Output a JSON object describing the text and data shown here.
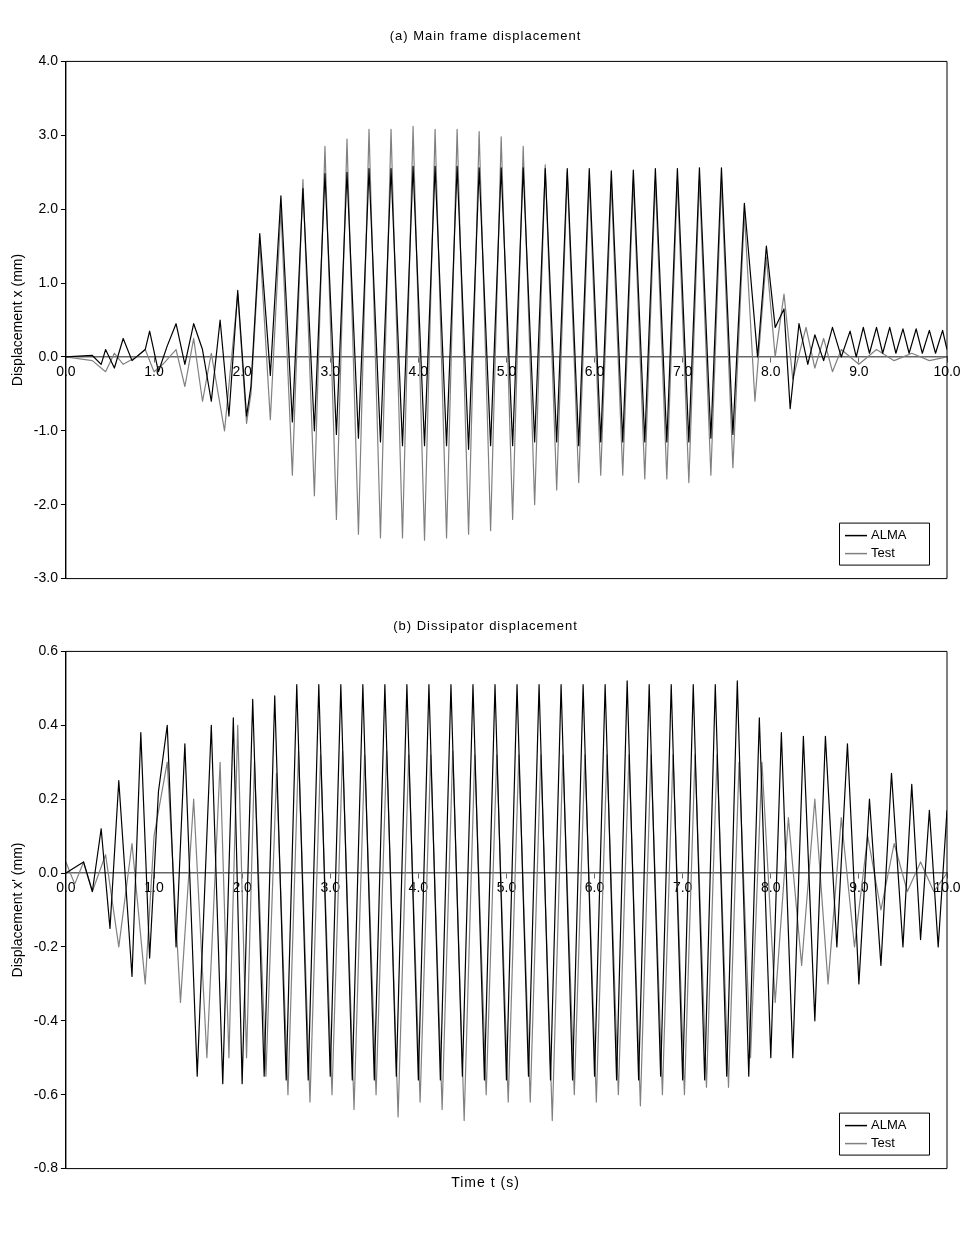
{
  "chart_data": [
    {
      "type": "line",
      "title": "(a) Main frame displacement",
      "ylabel": "Displacement x (mm)",
      "xlim": [
        0,
        10
      ],
      "xticks": [
        {
          "value": 0,
          "label": "0.0"
        },
        {
          "value": 1,
          "label": "1.0"
        },
        {
          "value": 2,
          "label": "2.0"
        },
        {
          "value": 3,
          "label": "3.0"
        },
        {
          "value": 4,
          "label": "4.0"
        },
        {
          "value": 5,
          "label": "5.0"
        },
        {
          "value": 6,
          "label": "6.0"
        },
        {
          "value": 7,
          "label": "7.0"
        },
        {
          "value": 8,
          "label": "8.0"
        },
        {
          "value": 9,
          "label": "9.0"
        },
        {
          "value": 10,
          "label": "10.0"
        }
      ],
      "ylim": [
        -3,
        4
      ],
      "yticks": [
        {
          "value": -3,
          "label": "-3.0"
        },
        {
          "value": -2,
          "label": "-2.0"
        },
        {
          "value": -1,
          "label": "-1.0"
        },
        {
          "value": 0,
          "label": "0.0"
        },
        {
          "value": 1,
          "label": "1.0"
        },
        {
          "value": 2,
          "label": "2.0"
        },
        {
          "value": 3,
          "label": "3.0"
        },
        {
          "value": 4,
          "label": "4.0"
        }
      ],
      "grid": false,
      "legend": "bottom right",
      "series": [
        {
          "name": "ALMA",
          "color": "#000000",
          "x": [
            0,
            0.3,
            0.4,
            0.45,
            0.55,
            0.65,
            0.75,
            0.9,
            0.95,
            1.05,
            1.15,
            1.25,
            1.35,
            1.45,
            1.55,
            1.65,
            1.75,
            1.85,
            1.95,
            2.05,
            2.1,
            2.2,
            2.32,
            2.44,
            2.57,
            2.69,
            2.82,
            2.94,
            3.07,
            3.19,
            3.32,
            3.44,
            3.57,
            3.69,
            3.82,
            3.94,
            4.07,
            4.19,
            4.32,
            4.44,
            4.57,
            4.69,
            4.82,
            4.94,
            5.07,
            5.19,
            5.32,
            5.44,
            5.57,
            5.69,
            5.82,
            5.94,
            6.07,
            6.19,
            6.32,
            6.44,
            6.57,
            6.69,
            6.82,
            6.94,
            7.07,
            7.19,
            7.32,
            7.44,
            7.57,
            7.7,
            7.85,
            7.95,
            8.05,
            8.15,
            8.22,
            8.32,
            8.42,
            8.5,
            8.6,
            8.7,
            8.8,
            8.9,
            8.97,
            9.05,
            9.12,
            9.2,
            9.27,
            9.35,
            9.42,
            9.5,
            9.57,
            9.65,
            9.72,
            9.8,
            9.87,
            9.95,
            10
          ],
          "values": [
            0,
            0.02,
            -0.1,
            0.1,
            -0.15,
            0.25,
            -0.05,
            0.1,
            0.35,
            -0.2,
            0.15,
            0.45,
            -0.1,
            0.45,
            0.1,
            -0.6,
            0.5,
            -0.8,
            0.9,
            -0.8,
            -0.4,
            1.67,
            -0.25,
            2.18,
            -0.88,
            2.28,
            -1.0,
            2.48,
            -1.05,
            2.5,
            -1.1,
            2.55,
            -1.15,
            2.55,
            -1.2,
            2.58,
            -1.2,
            2.58,
            -1.2,
            2.58,
            -1.25,
            2.56,
            -1.2,
            2.56,
            -1.2,
            2.56,
            -1.15,
            2.55,
            -1.15,
            2.55,
            -1.2,
            2.55,
            -1.15,
            2.52,
            -1.15,
            2.53,
            -1.15,
            2.55,
            -1.15,
            2.55,
            -1.15,
            2.56,
            -1.1,
            2.56,
            -1.05,
            2.08,
            0,
            1.5,
            0.4,
            0.65,
            -0.7,
            0.45,
            -0.1,
            0.3,
            -0.05,
            0.4,
            0,
            0.35,
            0,
            0.4,
            0.05,
            0.4,
            0.05,
            0.4,
            0.05,
            0.38,
            0.05,
            0.38,
            0.05,
            0.36,
            0.05,
            0.36,
            0.1
          ]
        },
        {
          "name": "Test",
          "color": "#808080",
          "x": [
            0,
            0.3,
            0.45,
            0.55,
            0.65,
            0.8,
            0.9,
            1.0,
            1.1,
            1.25,
            1.35,
            1.45,
            1.55,
            1.65,
            1.8,
            1.95,
            2.05,
            2.1,
            2.2,
            2.32,
            2.44,
            2.57,
            2.69,
            2.82,
            2.94,
            3.07,
            3.19,
            3.32,
            3.44,
            3.57,
            3.69,
            3.82,
            3.94,
            4.07,
            4.19,
            4.32,
            4.44,
            4.57,
            4.69,
            4.82,
            4.94,
            5.07,
            5.19,
            5.32,
            5.44,
            5.57,
            5.69,
            5.82,
            5.94,
            6.07,
            6.19,
            6.32,
            6.44,
            6.57,
            6.69,
            6.82,
            6.94,
            7.07,
            7.19,
            7.32,
            7.44,
            7.57,
            7.7,
            7.82,
            7.95,
            8.05,
            8.15,
            8.25,
            8.4,
            8.5,
            8.6,
            8.7,
            8.8,
            9.0,
            9.2,
            9.4,
            9.6,
            9.8,
            10
          ],
          "values": [
            0,
            -0.05,
            -0.2,
            0.05,
            -0.1,
            0,
            0.1,
            -0.2,
            -0.1,
            0.1,
            -0.4,
            0.25,
            -0.6,
            0.05,
            -1.0,
            0.85,
            -0.9,
            -0.5,
            1.55,
            -0.85,
            2.0,
            -1.6,
            2.4,
            -1.88,
            2.85,
            -2.2,
            2.95,
            -2.4,
            3.08,
            -2.45,
            3.08,
            -2.45,
            3.12,
            -2.48,
            3.08,
            -2.45,
            3.08,
            -2.4,
            3.05,
            -2.35,
            2.98,
            -2.2,
            2.85,
            -2.0,
            2.6,
            -1.8,
            2.5,
            -1.7,
            2.4,
            -1.6,
            2.35,
            -1.6,
            2.4,
            -1.65,
            2.4,
            -1.65,
            2.4,
            -1.7,
            2.4,
            -1.6,
            2.38,
            -1.5,
            1.95,
            -0.6,
            1.35,
            0,
            0.85,
            -0.3,
            0.4,
            -0.15,
            0.25,
            -0.2,
            0.1,
            -0.1,
            0.1,
            -0.05,
            0.05,
            -0.05,
            0
          ]
        }
      ]
    },
    {
      "type": "line",
      "title": "(b) Dissipator displacement",
      "xlabel": "Time t (s)",
      "ylabel": "Displacement x' (mm)",
      "xlim": [
        0,
        10
      ],
      "xticks": [
        {
          "value": 0,
          "label": "0.0"
        },
        {
          "value": 1,
          "label": "1.0"
        },
        {
          "value": 2,
          "label": "2.0"
        },
        {
          "value": 3,
          "label": "3.0"
        },
        {
          "value": 4,
          "label": "4.0"
        },
        {
          "value": 5,
          "label": "5.0"
        },
        {
          "value": 6,
          "label": "6.0"
        },
        {
          "value": 7,
          "label": "7.0"
        },
        {
          "value": 8,
          "label": "8.0"
        },
        {
          "value": 9,
          "label": "9.0"
        },
        {
          "value": 10,
          "label": "10.0"
        }
      ],
      "ylim": [
        -0.8,
        0.6
      ],
      "yticks": [
        {
          "value": -0.8,
          "label": "-0.8"
        },
        {
          "value": -0.6,
          "label": "-0.6"
        },
        {
          "value": -0.4,
          "label": "-0.4"
        },
        {
          "value": -0.2,
          "label": "-0.2"
        },
        {
          "value": 0,
          "label": "0.0"
        },
        {
          "value": 0.2,
          "label": "0.2"
        },
        {
          "value": 0.4,
          "label": "0.4"
        },
        {
          "value": 0.6,
          "label": "0.6"
        }
      ],
      "grid": false,
      "legend": "bottom right",
      "series": [
        {
          "name": "ALMA",
          "color": "#000000",
          "x": [
            0,
            0.2,
            0.3,
            0.4,
            0.5,
            0.6,
            0.75,
            0.85,
            0.95,
            1.05,
            1.15,
            1.25,
            1.35,
            1.49,
            1.65,
            1.78,
            1.9,
            2.0,
            2.12,
            2.25,
            2.37,
            2.5,
            2.62,
            2.75,
            2.87,
            3.0,
            3.12,
            3.25,
            3.37,
            3.5,
            3.62,
            3.75,
            3.87,
            4.0,
            4.12,
            4.25,
            4.37,
            4.5,
            4.62,
            4.75,
            4.87,
            5.0,
            5.12,
            5.25,
            5.37,
            5.5,
            5.62,
            5.75,
            5.87,
            6.0,
            6.12,
            6.25,
            6.37,
            6.5,
            6.62,
            6.75,
            6.87,
            7.0,
            7.12,
            7.25,
            7.37,
            7.5,
            7.62,
            7.75,
            7.87,
            8.0,
            8.12,
            8.25,
            8.37,
            8.5,
            8.62,
            8.75,
            8.87,
            9.0,
            9.12,
            9.25,
            9.37,
            9.5,
            9.6,
            9.7,
            9.8,
            9.9,
            10
          ],
          "values": [
            0,
            0.03,
            -0.05,
            0.12,
            -0.15,
            0.25,
            -0.28,
            0.38,
            -0.23,
            0.22,
            0.4,
            -0.2,
            0.35,
            -0.55,
            0.4,
            -0.57,
            0.42,
            -0.57,
            0.47,
            -0.55,
            0.48,
            -0.56,
            0.51,
            -0.56,
            0.51,
            -0.55,
            0.51,
            -0.56,
            0.51,
            -0.56,
            0.51,
            -0.55,
            0.51,
            -0.56,
            0.51,
            -0.56,
            0.51,
            -0.55,
            0.51,
            -0.56,
            0.51,
            -0.56,
            0.51,
            -0.55,
            0.51,
            -0.56,
            0.51,
            -0.56,
            0.51,
            -0.55,
            0.51,
            -0.56,
            0.52,
            -0.56,
            0.51,
            -0.55,
            0.51,
            -0.56,
            0.51,
            -0.56,
            0.51,
            -0.55,
            0.52,
            -0.55,
            0.42,
            -0.5,
            0.38,
            -0.5,
            0.37,
            -0.4,
            0.37,
            -0.2,
            0.35,
            -0.3,
            0.2,
            -0.25,
            0.27,
            -0.2,
            0.24,
            -0.18,
            0.17,
            -0.2,
            0.17
          ]
        },
        {
          "name": "Test",
          "color": "#808080",
          "x": [
            0,
            0.1,
            0.2,
            0.3,
            0.45,
            0.6,
            0.75,
            0.9,
            1.0,
            1.15,
            1.3,
            1.45,
            1.6,
            1.75,
            1.85,
            1.95,
            2.05,
            2.14,
            2.27,
            2.39,
            2.52,
            2.64,
            2.77,
            2.89,
            3.02,
            3.14,
            3.27,
            3.39,
            3.52,
            3.64,
            3.77,
            3.89,
            4.02,
            4.14,
            4.27,
            4.39,
            4.52,
            4.64,
            4.77,
            4.89,
            5.02,
            5.14,
            5.27,
            5.39,
            5.52,
            5.64,
            5.77,
            5.89,
            6.02,
            6.14,
            6.27,
            6.39,
            6.52,
            6.64,
            6.77,
            6.89,
            7.02,
            7.14,
            7.27,
            7.39,
            7.52,
            7.64,
            7.77,
            7.9,
            8.05,
            8.2,
            8.35,
            8.5,
            8.65,
            8.8,
            8.95,
            9.1,
            9.25,
            9.4,
            9.55,
            9.7,
            9.85,
            10
          ],
          "values": [
            0.03,
            -0.03,
            0.03,
            -0.05,
            0.05,
            -0.2,
            0.08,
            -0.3,
            0.1,
            0.3,
            -0.35,
            0.2,
            -0.5,
            0.3,
            -0.5,
            0.4,
            -0.5,
            0.3,
            -0.55,
            0.27,
            -0.6,
            0.33,
            -0.62,
            0.32,
            -0.6,
            0.33,
            -0.64,
            0.32,
            -0.6,
            0.33,
            -0.66,
            0.32,
            -0.62,
            0.32,
            -0.64,
            0.33,
            -0.67,
            0.32,
            -0.6,
            0.32,
            -0.62,
            0.32,
            -0.62,
            0.32,
            -0.67,
            0.32,
            -0.6,
            0.32,
            -0.62,
            0.32,
            -0.6,
            0.32,
            -0.63,
            0.32,
            -0.6,
            0.32,
            -0.6,
            0.32,
            -0.58,
            0.32,
            -0.58,
            0.3,
            -0.5,
            0.3,
            -0.35,
            0.15,
            -0.25,
            0.2,
            -0.3,
            0.15,
            -0.2,
            0.1,
            -0.1,
            0.08,
            -0.05,
            0.03,
            -0.05,
            0
          ]
        }
      ]
    }
  ]
}
